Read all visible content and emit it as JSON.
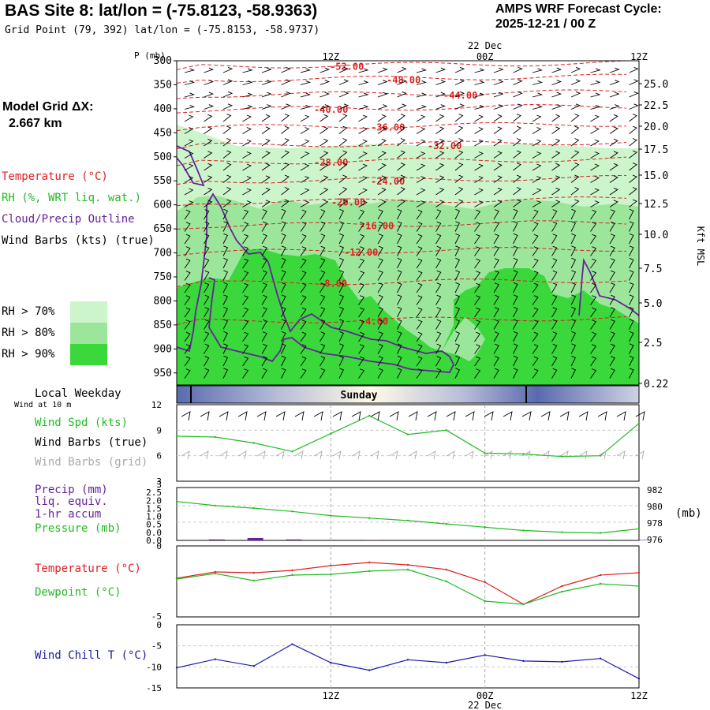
{
  "header": {
    "title": "BAS Site 8:  lat/lon = (-75.8123, -58.9363)",
    "subtitle": "Grid Point (79, 392) lat/lon = (-75.8153, -58.9737)",
    "forecast_label": "AMPS WRF Forecast Cycle:",
    "forecast_cycle": "2025-12-21 / 00  Z"
  },
  "left_panel": {
    "model_grid_label": "Model Grid ΔX:",
    "model_grid_value": "2.667 km",
    "legend": {
      "temperature": "Temperature (°C)",
      "rh": "RH (%, WRT liq. wat.)",
      "cloud": "Cloud/Precip Outline",
      "wind": "Wind Barbs (kts) (true)"
    },
    "rh_bins": [
      {
        "label": "RH > 70%",
        "color": "#ccf5cc"
      },
      {
        "label": "RH > 80%",
        "color": "#9be69b"
      },
      {
        "label": "RH > 90%",
        "color": "#3ad83a"
      }
    ]
  },
  "time_axis": {
    "top_ticks": [
      "12Z",
      "00Z",
      "12Z"
    ],
    "date_label": "22 Dec",
    "bottom_ticks": [
      "12Z",
      "00Z",
      "12Z"
    ]
  },
  "weekday_bar": {
    "label": "Local Weekday",
    "sublabel": "Wind at 10 m",
    "day": "Sunday"
  },
  "wind_panel": {
    "legend": [
      "Wind Spd (kts)",
      "Wind Barbs (true)",
      "Wind Barbs (grid)"
    ],
    "colors": [
      "#22bb22",
      "#000000",
      "#aaaaaa"
    ]
  },
  "precip_panel": {
    "legend": [
      "Precip (mm)",
      "liq. equiv.",
      "1-hr accum",
      "Pressure (mb)"
    ],
    "colors": [
      "#662299",
      "#662299",
      "#662299",
      "#22bb22"
    ],
    "right_unit": "(mb)"
  },
  "temp_panel": {
    "legend": [
      "Temperature (°C)",
      "Dewpoint (°C)"
    ],
    "colors": [
      "#dd2222",
      "#22bb22"
    ]
  },
  "chill_panel": {
    "legend": [
      "Wind Chill T (°C)"
    ],
    "colors": [
      "#1a1aa6"
    ]
  },
  "chart_data": [
    {
      "type": "contour",
      "name": "time-height cross section",
      "y_label": "P (mb)",
      "y_ticks": [
        "300",
        "350",
        "400",
        "450",
        "500",
        "550",
        "600",
        "650",
        "700",
        "750",
        "800",
        "850",
        "900",
        "950"
      ],
      "y2_label": "Kft MSL",
      "y2_ticks": [
        "25.0",
        "22.5",
        "20.0",
        "17.5",
        "15.0",
        "12.5",
        "10.0",
        "7.5",
        "5.0",
        "2.5",
        "0.22"
      ],
      "temperature_contours": [
        {
          "label": "-52.00",
          "p": 312
        },
        {
          "label": "-48.00",
          "p": 340
        },
        {
          "label": "-44.00",
          "p": 372
        },
        {
          "label": "-40.00",
          "p": 402
        },
        {
          "label": "-36.00",
          "p": 439
        },
        {
          "label": "-32.00",
          "p": 477
        },
        {
          "label": "-28.00",
          "p": 512
        },
        {
          "label": "-24.00",
          "p": 551
        },
        {
          "label": "-20.00",
          "p": 595
        },
        {
          "label": "-16.00",
          "p": 644
        },
        {
          "label": "-12.00",
          "p": 699
        },
        {
          "label": "-8.00",
          "p": 764
        },
        {
          "label": "-4.00",
          "p": 843
        }
      ]
    },
    {
      "type": "line",
      "name": "wind speed",
      "y_ticks": [
        "12",
        "9",
        "6",
        "3"
      ],
      "ylim": [
        3,
        12
      ],
      "x": [
        0,
        3,
        6,
        9,
        12,
        15,
        18,
        21,
        24,
        27,
        30,
        33,
        36
      ],
      "series": [
        {
          "name": "Wind Spd (kts)",
          "values": [
            8.3,
            8.2,
            7.5,
            6.5,
            8.6,
            10.7,
            8.5,
            9.0,
            6.3,
            6.2,
            5.9,
            6.0,
            9.8
          ]
        }
      ]
    },
    {
      "type": "bar+line",
      "name": "precip and pressure",
      "y_ticks": [
        "3",
        "2.5",
        "2.0",
        "1.5",
        "1.0",
        "0.5",
        "0.0",
        "0.0"
      ],
      "y2_ticks": [
        "982",
        "980",
        "978",
        "976"
      ],
      "precip_values": [
        0.0,
        0.02,
        0.05,
        0.02,
        0.0,
        0.01,
        0.0,
        0.0,
        0.0,
        0.0,
        0.0,
        0.0,
        0.01
      ],
      "series": [
        {
          "name": "Pressure (mb)",
          "values": [
            980.6,
            980.1,
            979.8,
            979.4,
            978.9,
            978.6,
            978.3,
            977.9,
            977.5,
            977.1,
            976.9,
            976.8,
            977.3
          ]
        }
      ]
    },
    {
      "type": "line",
      "name": "temperature and dewpoint",
      "y_ticks": [
        "0",
        "-5"
      ],
      "series": [
        {
          "name": "Temperature (°C)",
          "values": [
            -1.6,
            -0.8,
            -0.9,
            -0.6,
            0.0,
            0.4,
            0.1,
            -0.5,
            -2.1,
            -4.9,
            -2.6,
            -1.2,
            -0.9
          ]
        },
        {
          "name": "Dewpoint (°C)",
          "values": [
            -1.7,
            -1.0,
            -1.9,
            -1.2,
            -1.1,
            -0.7,
            -0.5,
            -2.0,
            -4.5,
            -4.9,
            -3.3,
            -2.3,
            -2.6
          ]
        }
      ]
    },
    {
      "type": "line",
      "name": "wind chill",
      "y_ticks": [
        "0",
        "-5",
        "-10",
        "-15"
      ],
      "series": [
        {
          "name": "Wind Chill T (°C)",
          "values": [
            -10.2,
            -8.2,
            -9.8,
            -4.6,
            -9.0,
            -10.8,
            -8.3,
            -9.0,
            -7.2,
            -8.6,
            -8.8,
            -8.0,
            -12.8
          ]
        }
      ]
    }
  ]
}
